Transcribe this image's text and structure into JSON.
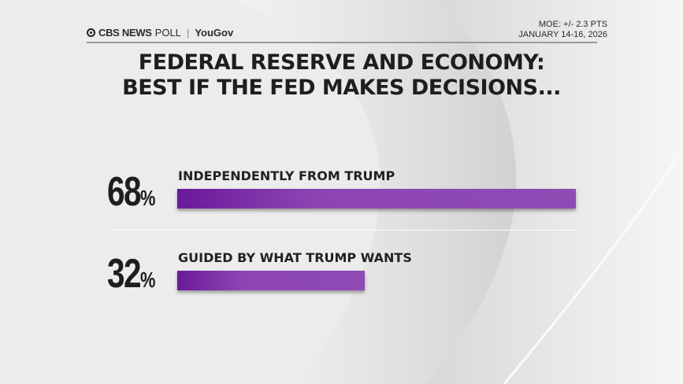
{
  "header": {
    "brand": "CBS NEWS",
    "poll": "POLL",
    "separator": "|",
    "partner": "YouGov",
    "moe": "MOE: +/- 2.3 PTS",
    "dates": "JANUARY 14-16, 2026"
  },
  "chart_data": {
    "type": "bar",
    "orientation": "horizontal",
    "title_line1": "FEDERAL RESERVE AND ECONOMY:",
    "title_line2": "BEST IF THE FED MAKES DECISIONS...",
    "categories": [
      "INDEPENDENTLY FROM TRUMP",
      "GUIDED BY WHAT TRUMP WANTS"
    ],
    "values": [
      68,
      32
    ],
    "value_labels": [
      "68",
      "32"
    ],
    "unit": "%",
    "bar_color": "#8d45b3",
    "grid": false
  }
}
